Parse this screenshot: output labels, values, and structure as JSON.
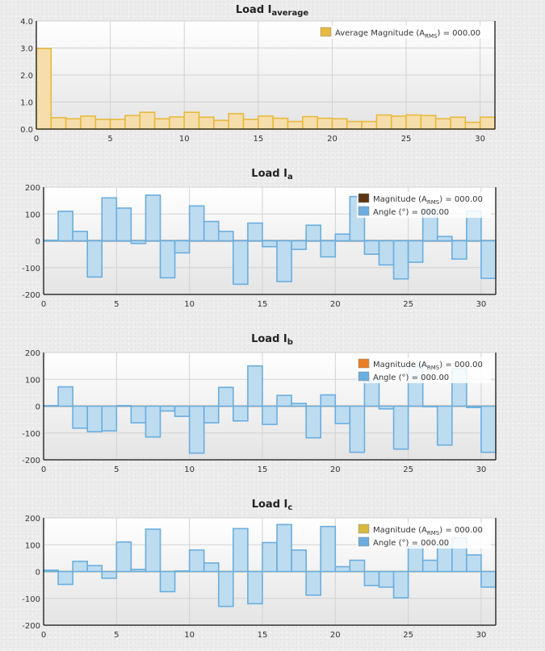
{
  "chart_data": [
    {
      "id": "avg",
      "type": "bar",
      "title": "Load I",
      "title_sub": "average",
      "ylim": [
        0,
        4
      ],
      "yticks": [
        "0.0",
        "1.0",
        "2.0",
        "3.0",
        "4.0"
      ],
      "ytick_values": [
        0,
        1,
        2,
        3,
        4
      ],
      "xlim": [
        0,
        31
      ],
      "xticks": [
        "0",
        "5",
        "10",
        "15",
        "20",
        "25",
        "30"
      ],
      "xtick_values": [
        0,
        5,
        10,
        15,
        20,
        25,
        30
      ],
      "grid": true,
      "legend_position": "top-right",
      "series": [
        {
          "name_main": "Average Magnitude (A",
          "name_sub": "RMS",
          "name_tail": ") = 000.00",
          "color": "#e7b93f",
          "fill": "#f5deab",
          "kind": "bar",
          "values": [
            2.98,
            0.42,
            0.38,
            0.48,
            0.36,
            0.36,
            0.5,
            0.62,
            0.38,
            0.45,
            0.62,
            0.44,
            0.32,
            0.57,
            0.36,
            0.48,
            0.4,
            0.28,
            0.46,
            0.4,
            0.38,
            0.28,
            0.28,
            0.52,
            0.48,
            0.52,
            0.5,
            0.38,
            0.44,
            0.25,
            0.44
          ]
        }
      ]
    },
    {
      "id": "ia",
      "type": "bar",
      "title": "Load I",
      "title_sub": "a",
      "ylim": [
        -200,
        200
      ],
      "yticks": [
        "-200",
        "-100",
        "0",
        "100",
        "200"
      ],
      "ytick_values": [
        -200,
        -100,
        0,
        100,
        200
      ],
      "xlim": [
        0,
        31
      ],
      "xticks": [
        "0",
        "5",
        "10",
        "15",
        "20",
        "25",
        "30"
      ],
      "xtick_values": [
        0,
        5,
        10,
        15,
        20,
        25,
        30
      ],
      "grid": true,
      "legend_position": "top-right",
      "series": [
        {
          "name_main": "Magnitude (A",
          "name_sub": "RMS",
          "name_tail": ") = 000.00",
          "color": "#5c3512",
          "kind": "line",
          "values": [
            0,
            0,
            0,
            0,
            0,
            0,
            0,
            0,
            0,
            0,
            0,
            0,
            0,
            0,
            0,
            0,
            0,
            0,
            0,
            0,
            0,
            0,
            0,
            0,
            0,
            0,
            0,
            0,
            0,
            0,
            0
          ]
        },
        {
          "name_main": "Angle (°) = 000.00",
          "name_sub": "",
          "name_tail": "",
          "color": "#6aaedf",
          "fill": "#bedcf0",
          "kind": "bar",
          "values": [
            2,
            110,
            35,
            -135,
            160,
            122,
            -10,
            170,
            -138,
            -45,
            130,
            72,
            35,
            -162,
            66,
            -22,
            -152,
            -32,
            58,
            -60,
            25,
            165,
            -50,
            -90,
            -142,
            -80,
            118,
            16,
            -68,
            112,
            -140
          ]
        }
      ]
    },
    {
      "id": "ib",
      "type": "bar",
      "title": "Load I",
      "title_sub": "b",
      "ylim": [
        -200,
        200
      ],
      "yticks": [
        "-200",
        "-100",
        "0",
        "100",
        "200"
      ],
      "ytick_values": [
        -200,
        -100,
        0,
        100,
        200
      ],
      "xlim": [
        0,
        31
      ],
      "xticks": [
        "0",
        "5",
        "10",
        "15",
        "20",
        "25",
        "30"
      ],
      "xtick_values": [
        0,
        5,
        10,
        15,
        20,
        25,
        30
      ],
      "grid": true,
      "legend_position": "top-right",
      "series": [
        {
          "name_main": "Magnitude (A",
          "name_sub": "RMS",
          "name_tail": ") = 000.00",
          "color": "#ea7e24",
          "kind": "line",
          "values": [
            0,
            0,
            0,
            0,
            0,
            0,
            0,
            0,
            0,
            0,
            0,
            0,
            0,
            0,
            0,
            0,
            0,
            0,
            0,
            0,
            0,
            0,
            0,
            0,
            0,
            0,
            0,
            0,
            0,
            0,
            0
          ]
        },
        {
          "name_main": "Angle (°) = 000.00",
          "name_sub": "",
          "name_tail": "",
          "color": "#6aaedf",
          "fill": "#bedcf0",
          "kind": "bar",
          "values": [
            2,
            72,
            -82,
            -95,
            -92,
            2,
            -62,
            -115,
            -18,
            -38,
            -175,
            -62,
            70,
            -55,
            150,
            -68,
            40,
            10,
            -118,
            42,
            -65,
            -172,
            95,
            -10,
            -160,
            150,
            -2,
            -145,
            140,
            -5,
            -172
          ]
        }
      ]
    },
    {
      "id": "ic",
      "type": "bar",
      "title": "Load I",
      "title_sub": "c",
      "ylim": [
        -200,
        200
      ],
      "yticks": [
        "-200",
        "-100",
        "0",
        "100",
        "200"
      ],
      "ytick_values": [
        -200,
        -100,
        0,
        100,
        200
      ],
      "xlim": [
        0,
        31
      ],
      "xticks": [
        "0",
        "5",
        "10",
        "15",
        "20",
        "25",
        "30"
      ],
      "xtick_values": [
        0,
        5,
        10,
        15,
        20,
        25,
        30
      ],
      "grid": true,
      "legend_position": "top-right",
      "series": [
        {
          "name_main": "Magnitude (A",
          "name_sub": "RMS",
          "name_tail": ") = 000.00",
          "color": "#d8b93e",
          "kind": "line",
          "values": [
            0,
            0,
            0,
            0,
            0,
            0,
            0,
            0,
            0,
            0,
            0,
            0,
            0,
            0,
            0,
            0,
            0,
            0,
            0,
            0,
            0,
            0,
            0,
            0,
            0,
            0,
            0,
            0,
            0,
            0,
            0
          ]
        },
        {
          "name_main": "Angle (°) = 000.00",
          "name_sub": "",
          "name_tail": "",
          "color": "#6aaedf",
          "fill": "#bedcf0",
          "kind": "bar",
          "values": [
            5,
            -48,
            38,
            22,
            -25,
            110,
            8,
            158,
            -75,
            2,
            80,
            32,
            -130,
            160,
            -120,
            108,
            175,
            80,
            -88,
            168,
            18,
            42,
            -52,
            -58,
            -98,
            95,
            42,
            98,
            125,
            62,
            -58
          ]
        }
      ]
    }
  ]
}
